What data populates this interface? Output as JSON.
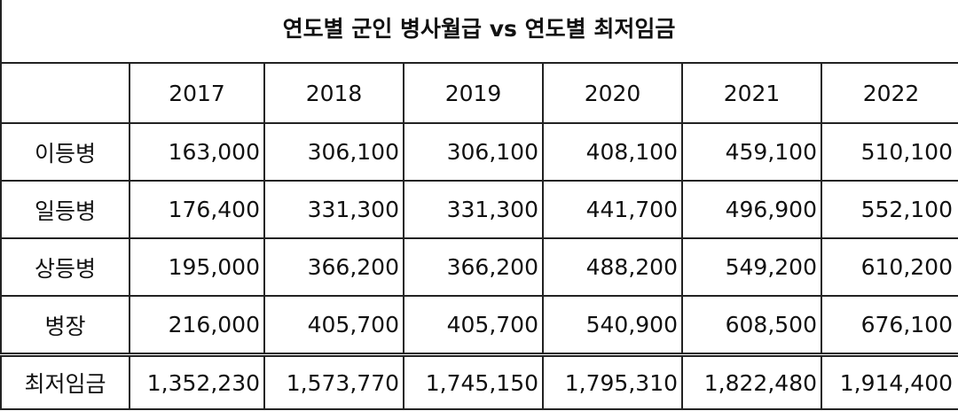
{
  "title": "연도별 군인 병사월급 vs 연도별 최저임금",
  "table": {
    "corner": "",
    "years": [
      "2017",
      "2018",
      "2019",
      "2020",
      "2021",
      "2022"
    ],
    "rows": [
      {
        "label": "이등병",
        "values": [
          "163,000",
          "306,100",
          "306,100",
          "408,100",
          "459,100",
          "510,100"
        ]
      },
      {
        "label": "일등병",
        "values": [
          "176,400",
          "331,300",
          "331,300",
          "441,700",
          "496,900",
          "552,100"
        ]
      },
      {
        "label": "상등병",
        "values": [
          "195,000",
          "366,200",
          "366,200",
          "488,200",
          "549,200",
          "610,200"
        ]
      },
      {
        "label": "병장",
        "values": [
          "216,000",
          "405,700",
          "405,700",
          "540,900",
          "608,500",
          "676,100"
        ]
      }
    ],
    "min_wage": {
      "label": "최저임금",
      "values": [
        "1,352,230",
        "1,573,770",
        "1,745,150",
        "1,795,310",
        "1,822,480",
        "1,914,400"
      ]
    }
  }
}
